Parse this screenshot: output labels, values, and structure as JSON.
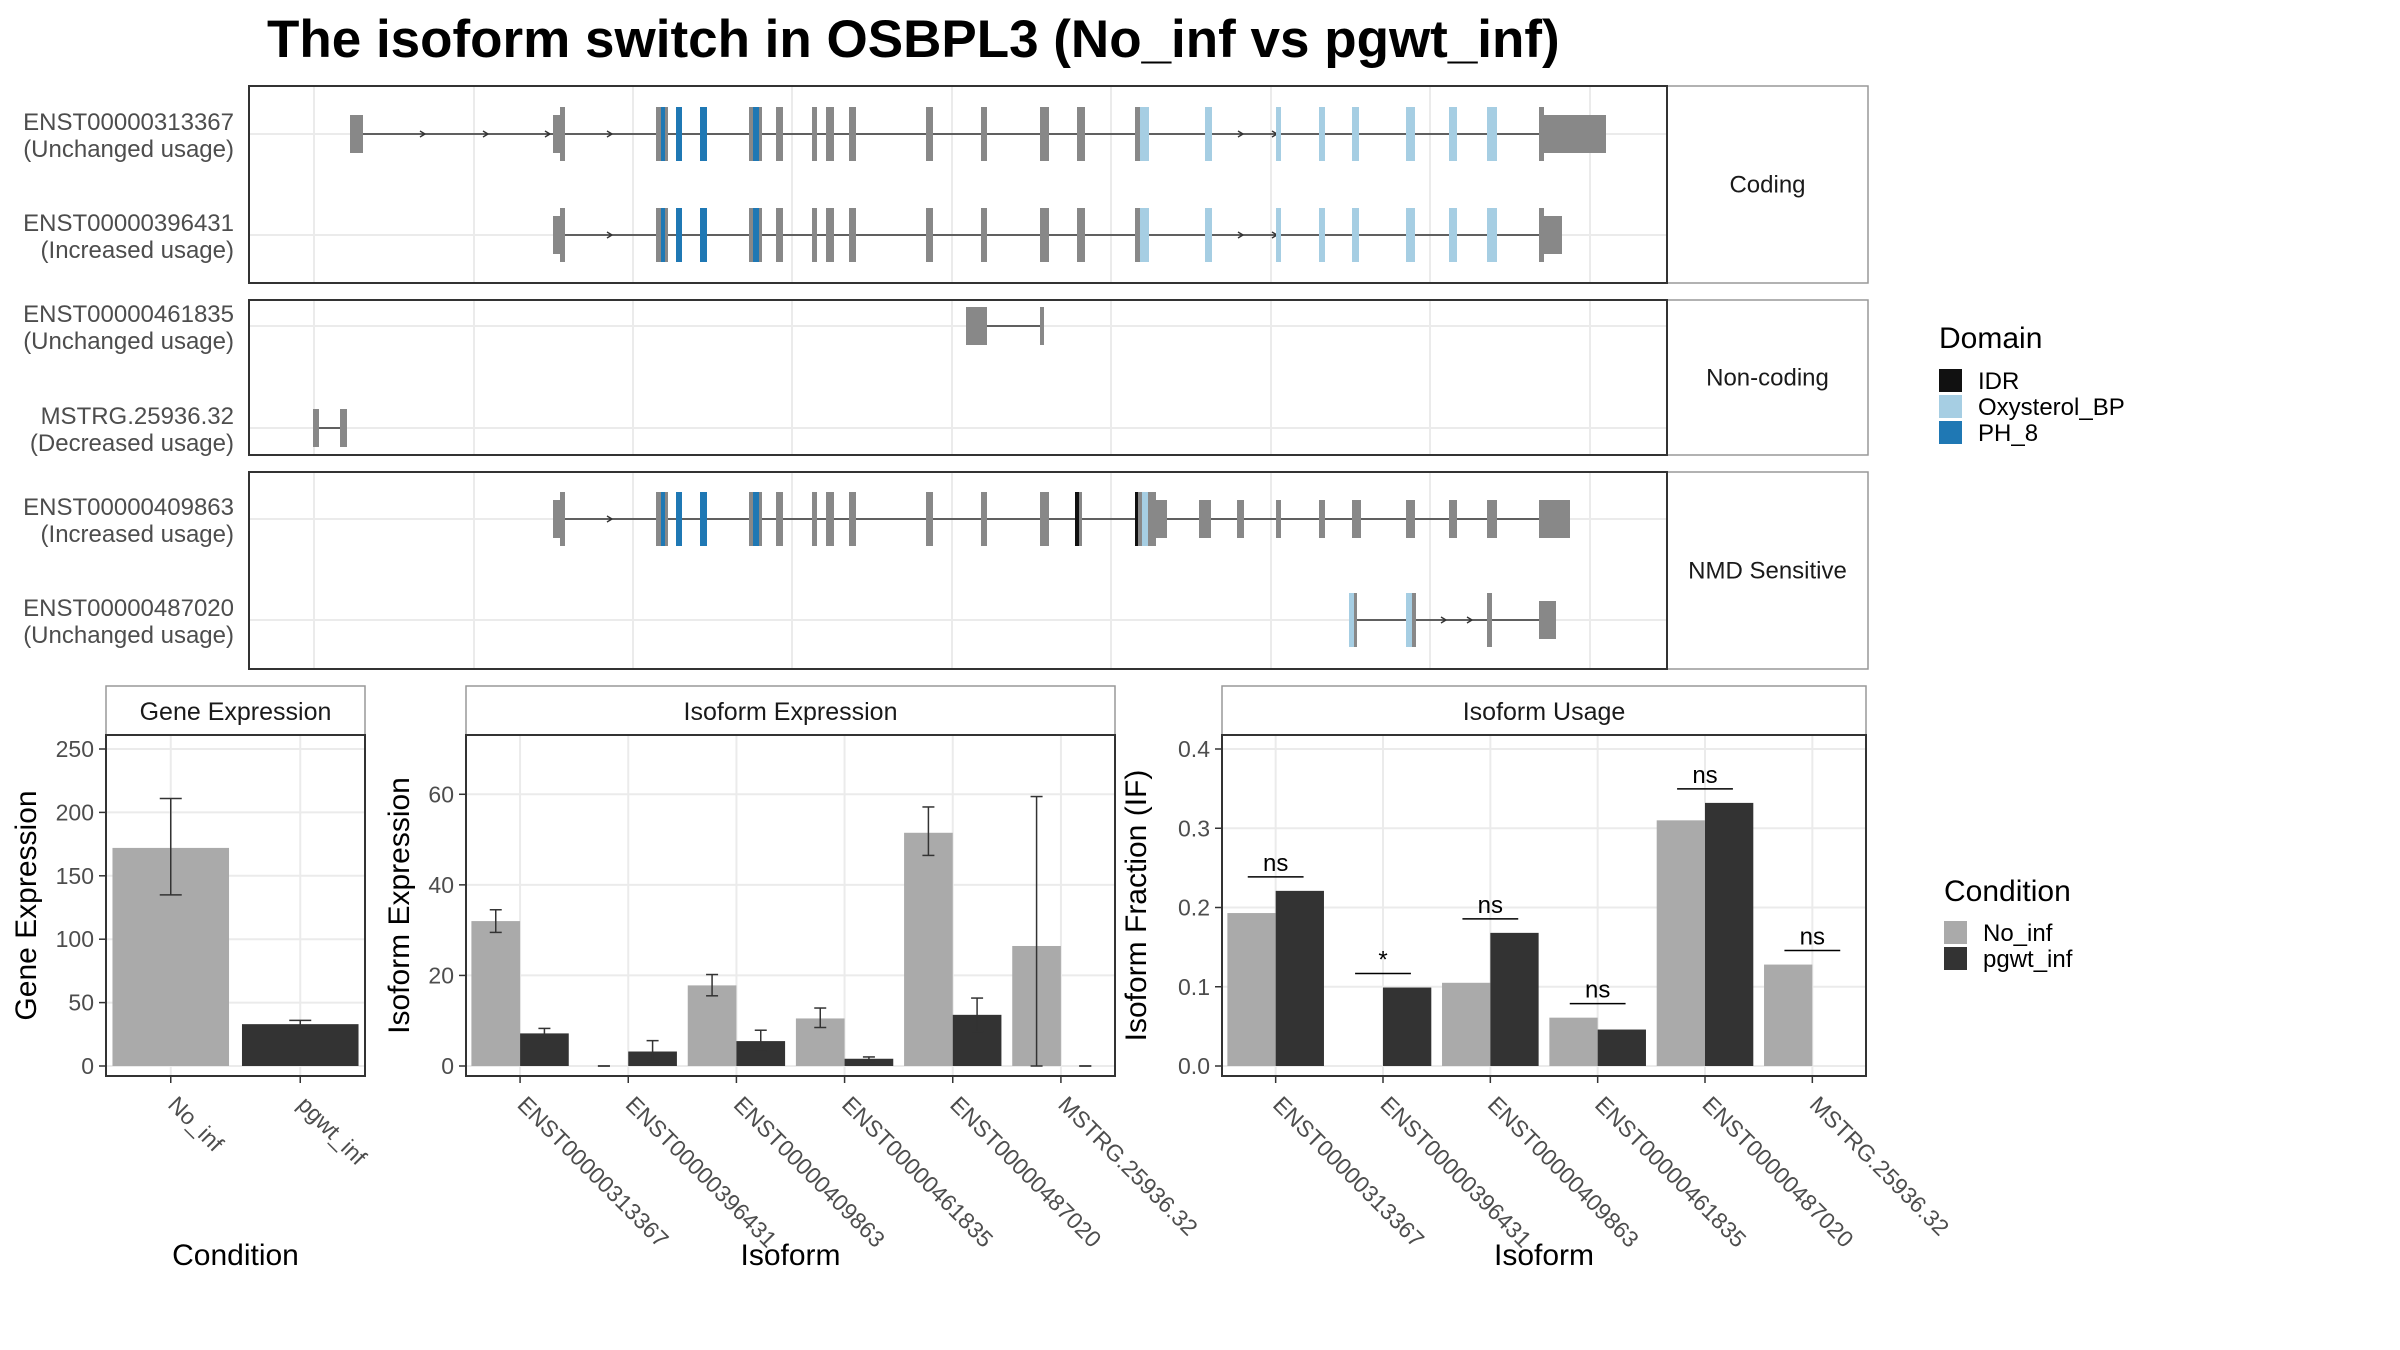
{
  "title": "The isoform switch in OSBPL3 (No_inf vs pgwt_inf)",
  "colors": {
    "no_inf": "#AAAAAA",
    "pgwt_inf": "#333333",
    "exon": "#888888",
    "IDR": "#111111",
    "Oxysterol_BP": "#A6CEE3",
    "PH_8": "#1F78B4",
    "panel_border": "#333333",
    "strip_border": "#999999",
    "grid": "#EBEBEB"
  },
  "structure": {
    "groups": [
      {
        "label": "Coding",
        "transcripts": [
          {
            "id": "ENST00000313367",
            "usage": "(Unchanged usage)"
          },
          {
            "id": "ENST00000396431",
            "usage": "(Increased usage)"
          }
        ]
      },
      {
        "label": "Non-coding",
        "transcripts": [
          {
            "id": "ENST00000461835",
            "usage": "(Unchanged usage)"
          },
          {
            "id": "MSTRG.25936.32",
            "usage": "(Decreased usage)"
          }
        ]
      },
      {
        "label": "NMD Sensitive",
        "transcripts": [
          {
            "id": "ENST00000409863",
            "usage": "(Increased usage)"
          },
          {
            "id": "ENST00000487020",
            "usage": "(Unchanged usage)"
          }
        ]
      }
    ],
    "legend": {
      "title": "Domain",
      "items": [
        {
          "label": "IDR",
          "color": "#111111"
        },
        {
          "label": "Oxysterol_BP",
          "color": "#A6CEE3"
        },
        {
          "label": "PH_8",
          "color": "#1F78B4"
        }
      ]
    }
  },
  "chart_data": [
    {
      "type": "bar",
      "title": "Gene Expression",
      "xlabel": "Condition",
      "ylabel": "Gene Expression",
      "ylim": [
        0,
        250
      ],
      "yticks": [
        0,
        50,
        100,
        150,
        200,
        250
      ],
      "categories": [
        "No_inf",
        "pgwt_inf"
      ],
      "values": [
        172,
        33
      ],
      "errors": [
        [
          135,
          211
        ],
        [
          30,
          36
        ]
      ]
    },
    {
      "type": "bar",
      "title": "Isoform Expression",
      "xlabel": "Isoform",
      "ylabel": "Isoform Expression",
      "ylim": [
        0,
        70
      ],
      "yticks": [
        0,
        20,
        40,
        60
      ],
      "categories": [
        "ENST00000313367",
        "ENST00000396431",
        "ENST00000409863",
        "ENST00000461835",
        "ENST00000487020",
        "MSTRG.25936.32"
      ],
      "series": [
        {
          "name": "No_inf",
          "values": [
            32,
            0,
            17.8,
            10.5,
            51.5,
            26.5
          ],
          "errors": [
            [
              29.5,
              34.5
            ],
            [
              0,
              0
            ],
            [
              15.5,
              20.2
            ],
            [
              8.5,
              12.8
            ],
            [
              46.5,
              57.2
            ],
            [
              0,
              59.5
            ]
          ]
        },
        {
          "name": "pgwt_inf",
          "values": [
            7.2,
            3.2,
            5.5,
            1.6,
            11.3,
            0
          ],
          "errors": [
            [
              6.2,
              8.3
            ],
            [
              1.0,
              5.6
            ],
            [
              3.3,
              7.9
            ],
            [
              1.0,
              2.0
            ],
            [
              7.6,
              15.0
            ],
            [
              0,
              0
            ]
          ]
        }
      ]
    },
    {
      "type": "bar",
      "title": "Isoform Usage",
      "xlabel": "Isoform",
      "ylabel": "Isoform Fraction (IF)",
      "ylim": [
        0,
        0.4
      ],
      "yticks": [
        0.0,
        0.1,
        0.2,
        0.3,
        0.4
      ],
      "ytick_labels": [
        "0.0",
        "0.1",
        "0.2",
        "0.3",
        "0.4"
      ],
      "categories": [
        "ENST00000313367",
        "ENST00000396431",
        "ENST00000409863",
        "ENST00000461835",
        "ENST00000487020",
        "MSTRG.25936.32"
      ],
      "series": [
        {
          "name": "No_inf",
          "values": [
            0.193,
            0,
            0.105,
            0.061,
            0.31,
            0.128
          ]
        },
        {
          "name": "pgwt_inf",
          "values": [
            0.221,
            0.099,
            0.168,
            0.046,
            0.332,
            0
          ]
        }
      ],
      "significance": [
        "ns",
        "*",
        "ns",
        "ns",
        "ns",
        "ns"
      ]
    }
  ],
  "condition_legend": {
    "title": "Condition",
    "items": [
      {
        "label": "No_inf",
        "color": "#AAAAAA"
      },
      {
        "label": "pgwt_inf",
        "color": "#333333"
      }
    ]
  }
}
